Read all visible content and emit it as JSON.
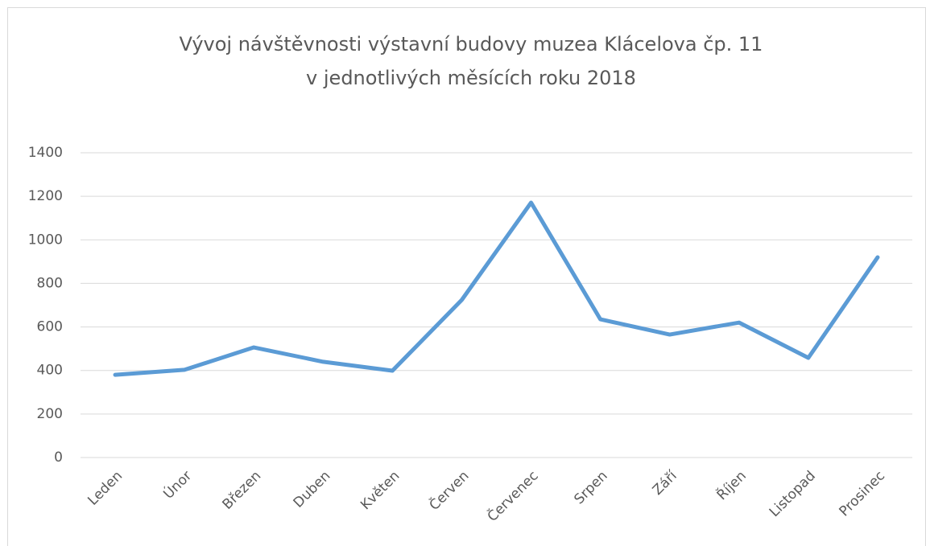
{
  "chart_data": {
    "type": "line",
    "title": [
      "Vývoj návštěvnosti výstavní budovy muzea Klácelova čp. 11",
      "v jednotlivých měsících roku 2018"
    ],
    "categories": [
      "Leden",
      "Únor",
      "Březen",
      "Duben",
      "Květen",
      "Červen",
      "Červenec",
      "Srpen",
      "Září",
      "Říjen",
      "Listopad",
      "Prosinec"
    ],
    "values": [
      380,
      403,
      506,
      440,
      399,
      724,
      1171,
      635,
      565,
      620,
      458,
      920
    ],
    "color": "#5b9bd5",
    "ylim": [
      0,
      1400
    ],
    "yticks": [
      0,
      200,
      400,
      600,
      800,
      1000,
      1200,
      1400
    ],
    "grid": true
  }
}
